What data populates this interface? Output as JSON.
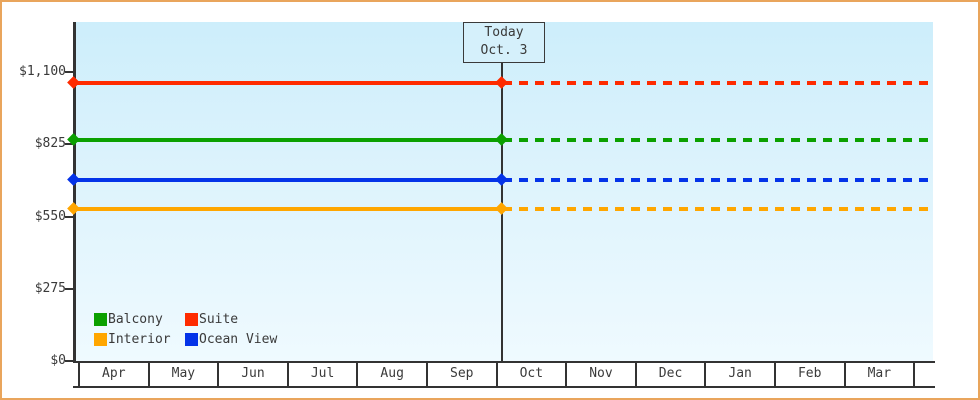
{
  "chart_data": {
    "type": "line",
    "title": "",
    "xlabel": "",
    "ylabel": "",
    "ylim": [
      0,
      1100
    ],
    "grid": false,
    "x_months": [
      "Apr",
      "May",
      "Jun",
      "Jul",
      "Aug",
      "Sep",
      "Oct",
      "Nov",
      "Dec",
      "Jan",
      "Feb",
      "Mar"
    ],
    "y_ticks": [
      {
        "label": "$0",
        "value": 0
      },
      {
        "label": "$275",
        "value": 275
      },
      {
        "label": "$550",
        "value": 550
      },
      {
        "label": "$825",
        "value": 825
      },
      {
        "label": "$1,100",
        "value": 1100
      }
    ],
    "today": {
      "line1": "Today",
      "line2": "Oct. 3",
      "month": "Oct",
      "day": 3
    },
    "series": [
      {
        "name": "Suite",
        "color": "#fe2b00",
        "value": 1058,
        "solid_until": "today",
        "dashed_after": true
      },
      {
        "name": "Balcony",
        "color": "#0ba000",
        "value": 843,
        "solid_until": "today",
        "dashed_after": true
      },
      {
        "name": "Ocean View",
        "color": "#0433e8",
        "value": 688,
        "solid_until": "today",
        "dashed_after": true
      },
      {
        "name": "Interior",
        "color": "#ffa600",
        "value": 578,
        "solid_until": "today",
        "dashed_after": true
      }
    ],
    "legend": {
      "position": "bottom-left",
      "items": [
        "Balcony",
        "Suite",
        "Interior",
        "Ocean View"
      ]
    }
  },
  "colors": {
    "page_border": "#e9a55c",
    "plot_bg_top": "#cdeefb",
    "plot_bg_bottom": "#effaff",
    "axis": "#333333",
    "text": "#3a3a3a",
    "month_cell_bg": "#ffffff",
    "today_box_bg": "#d5f0fb"
  }
}
